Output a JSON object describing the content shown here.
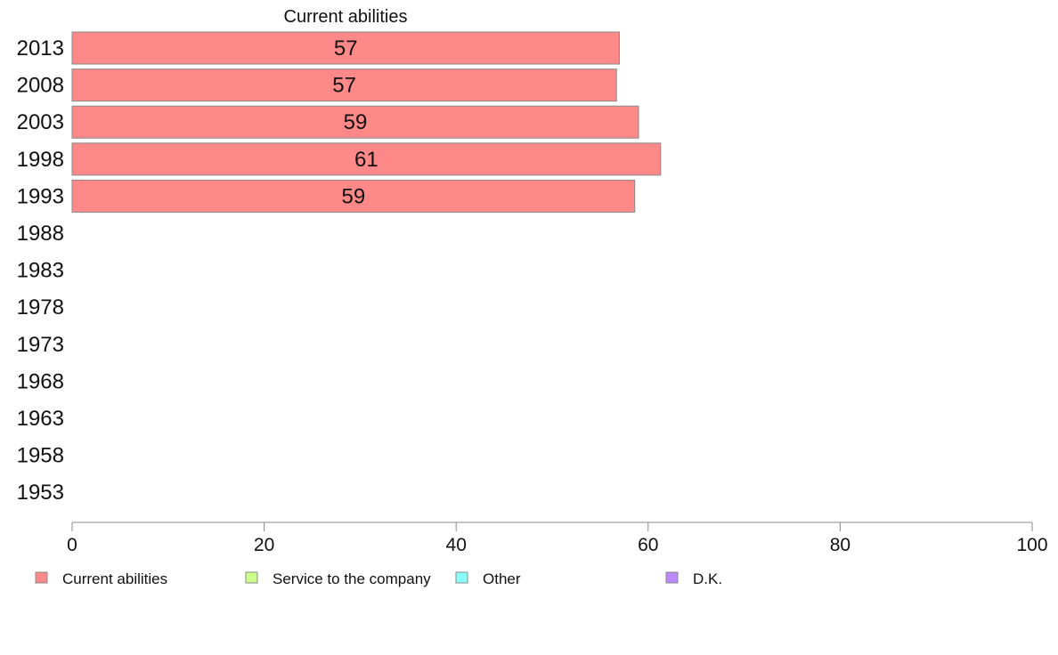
{
  "chart_data": {
    "type": "bar",
    "orientation": "horizontal",
    "title": "Current abilities",
    "xlabel": "",
    "ylabel": "",
    "xlim": [
      0,
      100
    ],
    "x_ticks": [
      "0",
      "20",
      "40",
      "60",
      "80",
      "100"
    ],
    "categories": [
      "2013",
      "2008",
      "2003",
      "1998",
      "1993",
      "1988",
      "1983",
      "1978",
      "1973",
      "1968",
      "1963",
      "1958",
      "1953"
    ],
    "series": [
      {
        "name": "Current abilities",
        "color": "#ff8888",
        "values": [
          57,
          56.7,
          59,
          61.3,
          58.6,
          null,
          null,
          null,
          null,
          null,
          null,
          null,
          null
        ],
        "labels": [
          "57",
          "57",
          "59",
          "61",
          "59",
          "",
          "",
          "",
          "",
          "",
          "",
          "",
          ""
        ]
      }
    ],
    "legend": {
      "placement": "bottom",
      "entries": [
        {
          "name": "Current abilities",
          "color": "#ff8888"
        },
        {
          "name": "Service to the company",
          "color": "#ccff88"
        },
        {
          "name": "Other",
          "color": "#88ffff"
        },
        {
          "name": "D.K.",
          "color": "#bb88ff"
        }
      ]
    },
    "grid": false
  }
}
